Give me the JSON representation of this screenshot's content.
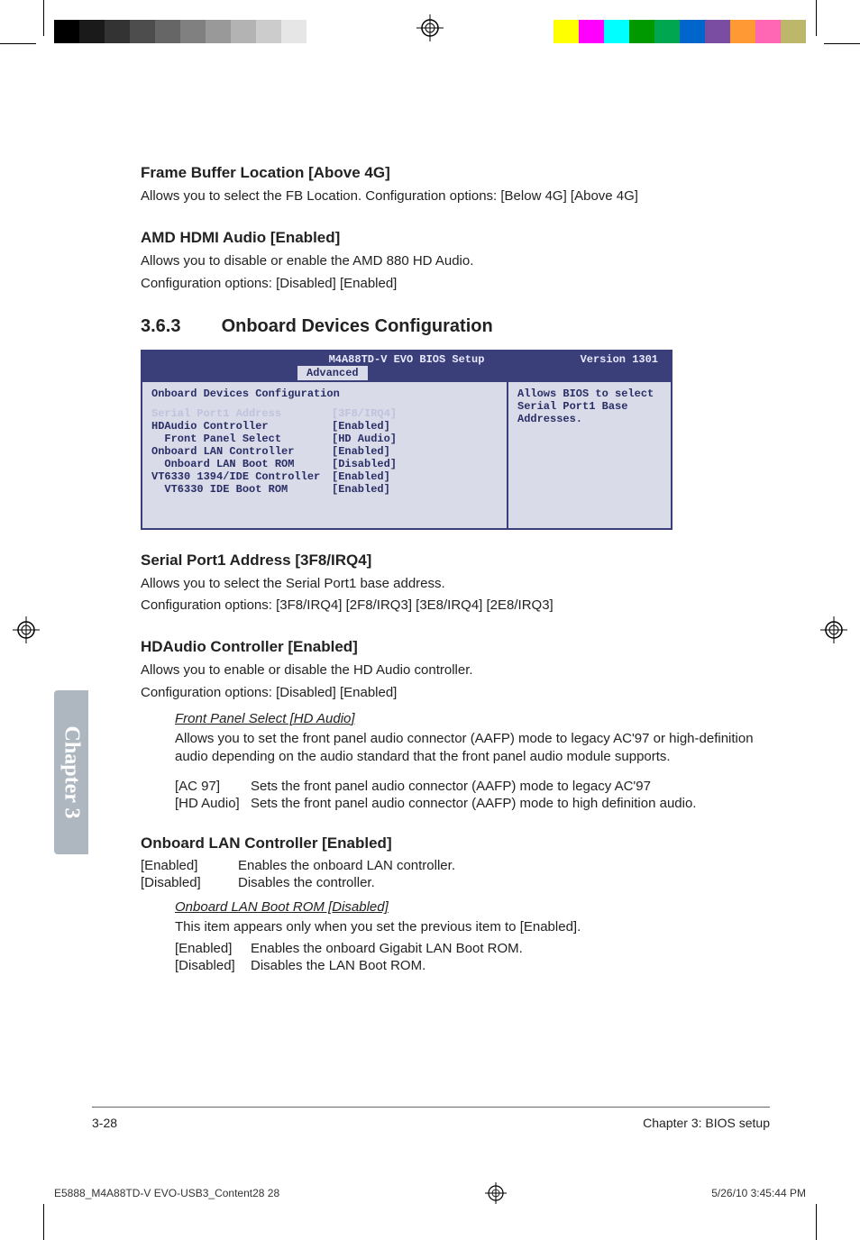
{
  "print": {
    "left_swatches": [
      "#000000",
      "#1a1a1a",
      "#333333",
      "#4d4d4d",
      "#666666",
      "#808080",
      "#999999",
      "#b3b3b3",
      "#cccccc",
      "#e6e6e6",
      "#ffffff"
    ],
    "right_swatches": [
      "#ffffff",
      "#ffff00",
      "#ff00ff",
      "#00ffff",
      "#009900",
      "#00a650",
      "#0066cc",
      "#7a4da3",
      "#ff9933",
      "#ff66b3",
      "#bdb76b"
    ],
    "reg_stroke": "#000000",
    "footer_file": "E5888_M4A88TD-V EVO-USB3_Content28   28",
    "footer_time": "5/26/10   3:45:44 PM"
  },
  "sidetab": {
    "label": "Chapter 3",
    "bg": "#aeb7bf",
    "fg": "#ffffff"
  },
  "s1": {
    "h": "Frame Buffer Location [Above 4G]",
    "p": "Allows you to select the FB Location. Configuration options: [Below 4G] [Above 4G]"
  },
  "s2": {
    "h": "AMD HDMI Audio [Enabled]",
    "p1": "Allows you to disable or enable the AMD 880 HD Audio.",
    "p2": "Configuration options: [Disabled] [Enabled]"
  },
  "s3": {
    "num": "3.6.3",
    "title": "Onboard Devices Configuration"
  },
  "bios": {
    "bg_header": "#3a3f7a",
    "bg_panel": "#d9dbe8",
    "fg_panel": "#2a2e66",
    "sel_fg": "#bfc3dd",
    "title": "M4A88TD-V EVO BIOS Setup",
    "version": "Version 1301",
    "tab": "Advanced",
    "panel_header": "Onboard Devices Configuration",
    "help1": "Allows BIOS to select",
    "help2": "Serial Port1 Base",
    "help3": "Addresses.",
    "rows": [
      {
        "label": "Serial Port1 Address",
        "value": "[3F8/IRQ4]",
        "selected": true,
        "indent": 0
      },
      {
        "label": "",
        "value": "",
        "selected": false,
        "indent": 0
      },
      {
        "label": "HDAudio Controller",
        "value": "[Enabled]",
        "selected": false,
        "indent": 0
      },
      {
        "label": "Front Panel Select",
        "value": "[HD Audio]",
        "selected": false,
        "indent": 1
      },
      {
        "label": "Onboard LAN Controller",
        "value": "[Enabled]",
        "selected": false,
        "indent": 0
      },
      {
        "label": "Onboard LAN Boot ROM",
        "value": "[Disabled]",
        "selected": false,
        "indent": 1
      },
      {
        "label": "VT6330 1394/IDE Controller",
        "value": "[Enabled]",
        "selected": false,
        "indent": 0
      },
      {
        "label": "VT6330 IDE Boot ROM",
        "value": "[Enabled]",
        "selected": false,
        "indent": 1
      }
    ]
  },
  "s4": {
    "h": "Serial Port1 Address [3F8/IRQ4]",
    "p1": "Allows you to select the Serial Port1 base address.",
    "p2": "Configuration options: [3F8/IRQ4] [2F8/IRQ3] [3E8/IRQ4] [2E8/IRQ3]"
  },
  "s5": {
    "h": "HDAudio Controller [Enabled]",
    "p1": "Allows you to enable or disable the HD Audio controller.",
    "p2": "Configuration options: [Disabled] [Enabled]",
    "sub_h": "Front Panel Select [HD Audio]",
    "sub_p": "Allows you to set the front panel audio connector (AAFP) mode to legacy AC'97 or high-definition audio depending on the audio standard that the front panel audio module supports.",
    "opt1k": "[AC 97]",
    "opt1v": "Sets the front panel audio connector (AAFP) mode to legacy AC'97",
    "opt2k": "[HD Audio]",
    "opt2v": "Sets the front panel audio connector (AAFP) mode to high definition audio."
  },
  "s6": {
    "h": "Onboard LAN Controller [Enabled]",
    "opt1k": "[Enabled]",
    "opt1v": "Enables the onboard LAN controller.",
    "opt2k": "[Disabled]",
    "opt2v": "Disables the controller.",
    "sub_h": "Onboard LAN Boot ROM [Disabled]",
    "sub_p": "This item appears only when you set the previous item to [Enabled].",
    "sopt1k": "[Enabled]",
    "sopt1v": "Enables the onboard Gigabit LAN Boot ROM.",
    "sopt2k": "[Disabled]",
    "sopt2v": "Disables the LAN Boot ROM."
  },
  "footer": {
    "left": "3-28",
    "right": "Chapter 3: BIOS setup"
  }
}
